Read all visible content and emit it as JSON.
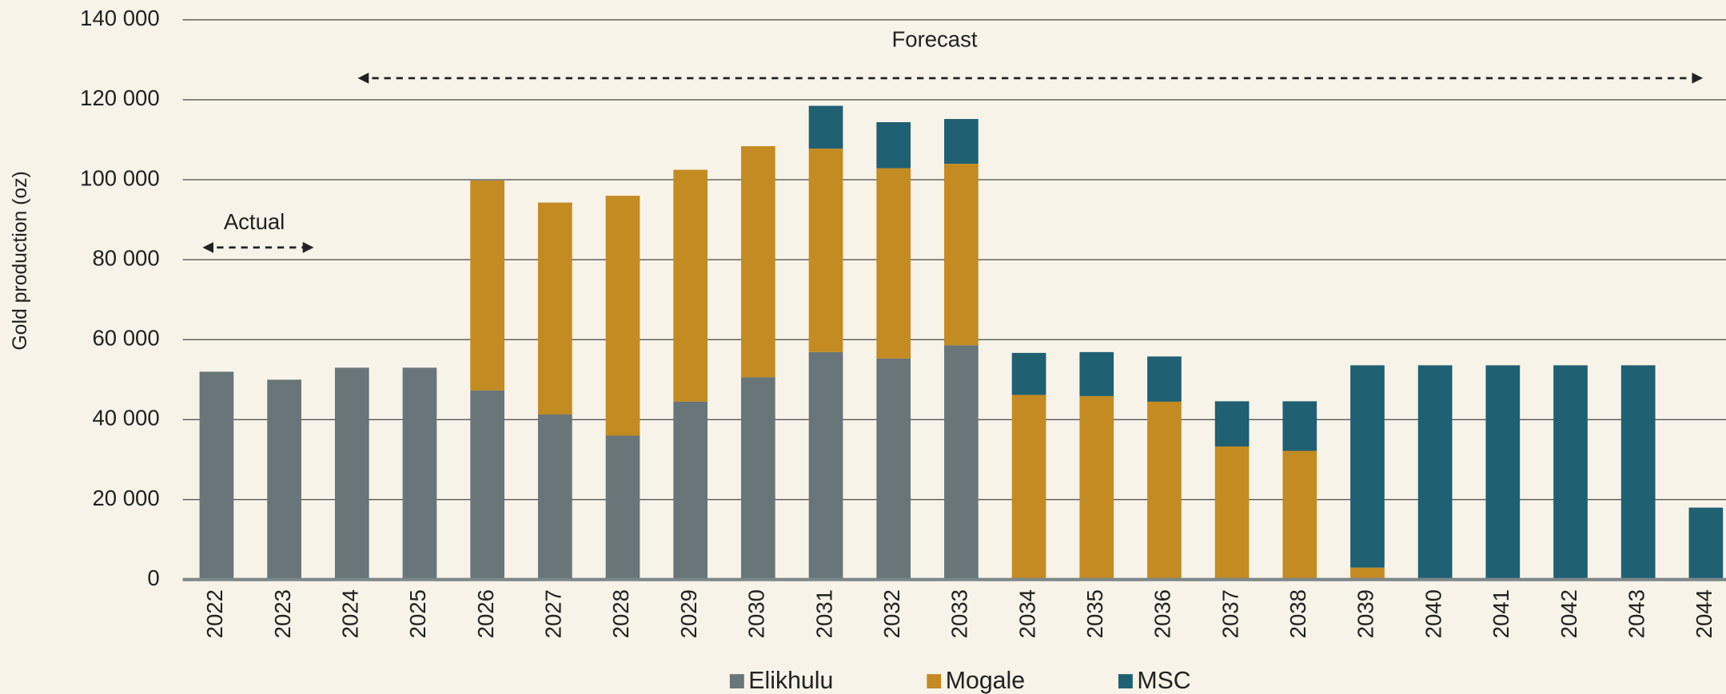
{
  "chart_data": {
    "type": "stacked-bar",
    "y_label": "Gold production (oz)",
    "annotations": [
      "Actual",
      "Forecast"
    ],
    "categories": [
      "2022",
      "2023",
      "2024",
      "2025",
      "2026",
      "2027",
      "2028",
      "2029",
      "2030",
      "2031",
      "2032",
      "2033",
      "2034",
      "2035",
      "2036",
      "2037",
      "2038",
      "2039",
      "2040",
      "2041",
      "2042",
      "2043",
      "2044"
    ],
    "series": [
      {
        "name": "Elikhulu",
        "color": "#68767a",
        "values": [
          52000,
          50000,
          53000,
          53000,
          47300,
          41300,
          36000,
          44500,
          50600,
          56900,
          55300,
          58600,
          0,
          0,
          0,
          0,
          0,
          0,
          0,
          0,
          0,
          0,
          0
        ]
      },
      {
        "name": "Mogale",
        "color": "#c38b22",
        "values": [
          0,
          0,
          0,
          0,
          52500,
          53000,
          60000,
          58000,
          57800,
          50900,
          47600,
          45400,
          46200,
          45900,
          44500,
          33300,
          32200,
          3000,
          0,
          0,
          0,
          0,
          0
        ]
      },
      {
        "name": "MSC",
        "color": "#1f6072",
        "values": [
          0,
          0,
          0,
          0,
          0,
          0,
          0,
          0,
          0,
          10700,
          11500,
          11200,
          10500,
          11000,
          11300,
          11300,
          12400,
          50600,
          53600,
          53600,
          53600,
          53600,
          18000
        ]
      }
    ],
    "ylim": [
      0,
      140000
    ],
    "yticks": [
      {
        "value": 0,
        "label": "0"
      },
      {
        "value": 20000,
        "label": "20 000"
      },
      {
        "value": 40000,
        "label": "40 000"
      },
      {
        "value": 60000,
        "label": "60 000"
      },
      {
        "value": 80000,
        "label": "80 000"
      },
      {
        "value": 100000,
        "label": "100 000"
      },
      {
        "value": 120000,
        "label": "120 000"
      },
      {
        "value": 140000,
        "label": "140 000"
      }
    ],
    "grid": true
  }
}
